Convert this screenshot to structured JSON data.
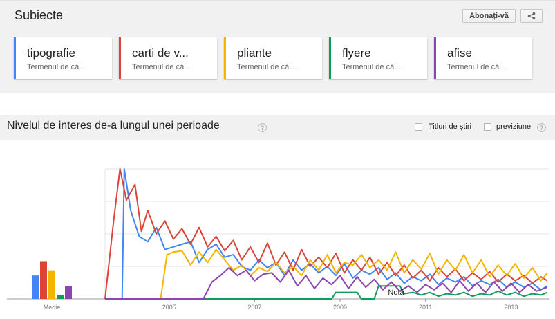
{
  "topics": {
    "title": "Subiecte",
    "subscribe_label": "Abonați-vă",
    "share_icon": "share-icon",
    "cards": [
      {
        "term": "tipografie",
        "type": "Termenul de că...",
        "color": "#4285f4"
      },
      {
        "term": "carti de v...",
        "type": "Termenul de că...",
        "color": "#db4437"
      },
      {
        "term": "pliante",
        "type": "Termenul de că...",
        "color": "#f4b400"
      },
      {
        "term": "flyere",
        "type": "Termenul de că...",
        "color": "#0f9d58"
      },
      {
        "term": "afise",
        "type": "Termenul de că...",
        "color": "#8e44ad"
      }
    ]
  },
  "interest": {
    "title": "Nivelul de interes de-a lungul unei perioade",
    "help_icon": "help-icon",
    "options": [
      {
        "label": "Titluri de știri",
        "checked": false
      },
      {
        "label": "previziune",
        "checked": false
      }
    ]
  },
  "chart_data": {
    "type": "line",
    "average_label": "Medie",
    "note_label": "Notă",
    "x_ticks": [
      "2005",
      "2007",
      "2009",
      "2011",
      "2013"
    ],
    "ylim": [
      0,
      100
    ],
    "grid": true,
    "averages": [
      {
        "name": "tipografie",
        "value": 18,
        "color": "#4285f4"
      },
      {
        "name": "carti de v...",
        "value": 29,
        "color": "#db4437"
      },
      {
        "name": "pliante",
        "value": 22,
        "color": "#f4b400"
      },
      {
        "name": "flyere",
        "value": 3,
        "color": "#0f9d58"
      },
      {
        "name": "afise",
        "value": 10,
        "color": "#8e44ad"
      }
    ],
    "series": [
      {
        "name": "tipografie",
        "color": "#4285f4",
        "points": [
          [
            2004.0,
            0
          ],
          [
            2004.4,
            0
          ],
          [
            2004.45,
            100
          ],
          [
            2004.6,
            68
          ],
          [
            2004.8,
            48
          ],
          [
            2005.0,
            44
          ],
          [
            2005.2,
            55
          ],
          [
            2005.4,
            38
          ],
          [
            2005.6,
            40
          ],
          [
            2005.8,
            42
          ],
          [
            2006.0,
            44
          ],
          [
            2006.2,
            28
          ],
          [
            2006.4,
            38
          ],
          [
            2006.6,
            42
          ],
          [
            2006.8,
            32
          ],
          [
            2007.0,
            34
          ],
          [
            2007.2,
            25
          ],
          [
            2007.4,
            22
          ],
          [
            2007.6,
            30
          ],
          [
            2007.8,
            24
          ],
          [
            2008.0,
            28
          ],
          [
            2008.2,
            18
          ],
          [
            2008.4,
            30
          ],
          [
            2008.6,
            22
          ],
          [
            2008.8,
            27
          ],
          [
            2009.0,
            20
          ],
          [
            2009.2,
            25
          ],
          [
            2009.4,
            18
          ],
          [
            2009.6,
            27
          ],
          [
            2009.8,
            16
          ],
          [
            2010.0,
            22
          ],
          [
            2010.2,
            19
          ],
          [
            2010.4,
            24
          ],
          [
            2010.6,
            15
          ],
          [
            2010.8,
            20
          ],
          [
            2011.0,
            12
          ],
          [
            2011.2,
            17
          ],
          [
            2011.4,
            14
          ],
          [
            2011.6,
            19
          ],
          [
            2011.8,
            11
          ],
          [
            2012.0,
            16
          ],
          [
            2012.2,
            13
          ],
          [
            2012.4,
            17
          ],
          [
            2012.6,
            10
          ],
          [
            2012.8,
            14
          ],
          [
            2013.0,
            11
          ],
          [
            2013.2,
            15
          ],
          [
            2013.4,
            9
          ],
          [
            2013.6,
            13
          ],
          [
            2013.8,
            9
          ],
          [
            2014.0,
            12
          ],
          [
            2014.2,
            7
          ],
          [
            2014.35,
            10
          ]
        ]
      },
      {
        "name": "carti de v...",
        "color": "#db4437",
        "points": [
          [
            2004.0,
            0
          ],
          [
            2004.2,
            60
          ],
          [
            2004.35,
            100
          ],
          [
            2004.5,
            76
          ],
          [
            2004.7,
            88
          ],
          [
            2004.85,
            52
          ],
          [
            2005.0,
            68
          ],
          [
            2005.2,
            50
          ],
          [
            2005.4,
            60
          ],
          [
            2005.6,
            46
          ],
          [
            2005.8,
            54
          ],
          [
            2006.0,
            42
          ],
          [
            2006.2,
            55
          ],
          [
            2006.4,
            40
          ],
          [
            2006.6,
            48
          ],
          [
            2006.8,
            37
          ],
          [
            2007.0,
            45
          ],
          [
            2007.2,
            30
          ],
          [
            2007.4,
            40
          ],
          [
            2007.6,
            28
          ],
          [
            2007.8,
            43
          ],
          [
            2008.0,
            26
          ],
          [
            2008.2,
            36
          ],
          [
            2008.4,
            22
          ],
          [
            2008.6,
            38
          ],
          [
            2008.8,
            25
          ],
          [
            2009.0,
            32
          ],
          [
            2009.2,
            24
          ],
          [
            2009.4,
            35
          ],
          [
            2009.6,
            20
          ],
          [
            2009.8,
            30
          ],
          [
            2010.0,
            22
          ],
          [
            2010.2,
            32
          ],
          [
            2010.4,
            19
          ],
          [
            2010.6,
            28
          ],
          [
            2010.8,
            18
          ],
          [
            2011.0,
            26
          ],
          [
            2011.2,
            16
          ],
          [
            2011.4,
            22
          ],
          [
            2011.6,
            14
          ],
          [
            2011.8,
            24
          ],
          [
            2012.0,
            17
          ],
          [
            2012.2,
            23
          ],
          [
            2012.4,
            14
          ],
          [
            2012.6,
            20
          ],
          [
            2012.8,
            15
          ],
          [
            2013.0,
            21
          ],
          [
            2013.2,
            13
          ],
          [
            2013.4,
            19
          ],
          [
            2013.6,
            14
          ],
          [
            2013.8,
            18
          ],
          [
            2014.0,
            12
          ],
          [
            2014.2,
            17
          ],
          [
            2014.35,
            14
          ]
        ]
      },
      {
        "name": "pliante",
        "color": "#f4b400",
        "points": [
          [
            2004.0,
            0
          ],
          [
            2005.3,
            0
          ],
          [
            2005.45,
            34
          ],
          [
            2005.6,
            36
          ],
          [
            2005.8,
            37
          ],
          [
            2006.0,
            26
          ],
          [
            2006.2,
            36
          ],
          [
            2006.4,
            28
          ],
          [
            2006.6,
            38
          ],
          [
            2006.8,
            30
          ],
          [
            2007.0,
            22
          ],
          [
            2007.2,
            26
          ],
          [
            2007.4,
            18
          ],
          [
            2007.6,
            24
          ],
          [
            2007.8,
            21
          ],
          [
            2008.0,
            28
          ],
          [
            2008.2,
            20
          ],
          [
            2008.4,
            25
          ],
          [
            2008.6,
            18
          ],
          [
            2008.8,
            30
          ],
          [
            2009.0,
            22
          ],
          [
            2009.2,
            34
          ],
          [
            2009.4,
            20
          ],
          [
            2009.6,
            28
          ],
          [
            2009.8,
            26
          ],
          [
            2010.0,
            34
          ],
          [
            2010.2,
            24
          ],
          [
            2010.4,
            30
          ],
          [
            2010.6,
            22
          ],
          [
            2010.8,
            36
          ],
          [
            2011.0,
            20
          ],
          [
            2011.2,
            30
          ],
          [
            2011.4,
            23
          ],
          [
            2011.6,
            35
          ],
          [
            2011.8,
            19
          ],
          [
            2012.0,
            30
          ],
          [
            2012.2,
            22
          ],
          [
            2012.4,
            34
          ],
          [
            2012.6,
            20
          ],
          [
            2012.8,
            30
          ],
          [
            2013.0,
            17
          ],
          [
            2013.2,
            26
          ],
          [
            2013.4,
            18
          ],
          [
            2013.6,
            27
          ],
          [
            2013.8,
            16
          ],
          [
            2014.0,
            24
          ],
          [
            2014.2,
            14
          ],
          [
            2014.35,
            20
          ]
        ]
      },
      {
        "name": "flyere",
        "color": "#0f9d58",
        "points": [
          [
            2004.0,
            0
          ],
          [
            2009.3,
            0
          ],
          [
            2009.4,
            5
          ],
          [
            2009.9,
            5
          ],
          [
            2010.0,
            0
          ],
          [
            2010.3,
            0
          ],
          [
            2010.4,
            10
          ],
          [
            2010.9,
            10
          ],
          [
            2011.0,
            4
          ],
          [
            2011.2,
            5
          ],
          [
            2011.4,
            3
          ],
          [
            2011.6,
            5
          ],
          [
            2011.8,
            2
          ],
          [
            2012.0,
            4
          ],
          [
            2012.2,
            3
          ],
          [
            2012.4,
            5
          ],
          [
            2012.6,
            2
          ],
          [
            2012.8,
            4
          ],
          [
            2013.0,
            3
          ],
          [
            2013.2,
            6
          ],
          [
            2013.4,
            3
          ],
          [
            2013.6,
            5
          ],
          [
            2013.8,
            2
          ],
          [
            2014.0,
            4
          ],
          [
            2014.2,
            3
          ],
          [
            2014.35,
            5
          ]
        ]
      },
      {
        "name": "afise",
        "color": "#8e44ad",
        "points": [
          [
            2004.0,
            0
          ],
          [
            2006.3,
            0
          ],
          [
            2006.5,
            13
          ],
          [
            2006.7,
            18
          ],
          [
            2006.9,
            24
          ],
          [
            2007.1,
            18
          ],
          [
            2007.3,
            22
          ],
          [
            2007.5,
            14
          ],
          [
            2007.7,
            19
          ],
          [
            2007.9,
            20
          ],
          [
            2008.1,
            13
          ],
          [
            2008.3,
            22
          ],
          [
            2008.5,
            10
          ],
          [
            2008.7,
            18
          ],
          [
            2008.9,
            8
          ],
          [
            2009.1,
            16
          ],
          [
            2009.3,
            11
          ],
          [
            2009.5,
            18
          ],
          [
            2009.7,
            8
          ],
          [
            2009.9,
            17
          ],
          [
            2010.1,
            9
          ],
          [
            2010.3,
            15
          ],
          [
            2010.5,
            7
          ],
          [
            2010.7,
            13
          ],
          [
            2010.9,
            6
          ],
          [
            2011.1,
            10
          ],
          [
            2011.3,
            5
          ],
          [
            2011.5,
            11
          ],
          [
            2011.7,
            7
          ],
          [
            2011.9,
            12
          ],
          [
            2012.1,
            5
          ],
          [
            2012.3,
            14
          ],
          [
            2012.5,
            6
          ],
          [
            2012.7,
            12
          ],
          [
            2012.9,
            5
          ],
          [
            2013.1,
            13
          ],
          [
            2013.3,
            6
          ],
          [
            2013.5,
            12
          ],
          [
            2013.7,
            5
          ],
          [
            2013.9,
            11
          ],
          [
            2014.1,
            6
          ],
          [
            2014.35,
            9
          ]
        ]
      }
    ]
  }
}
